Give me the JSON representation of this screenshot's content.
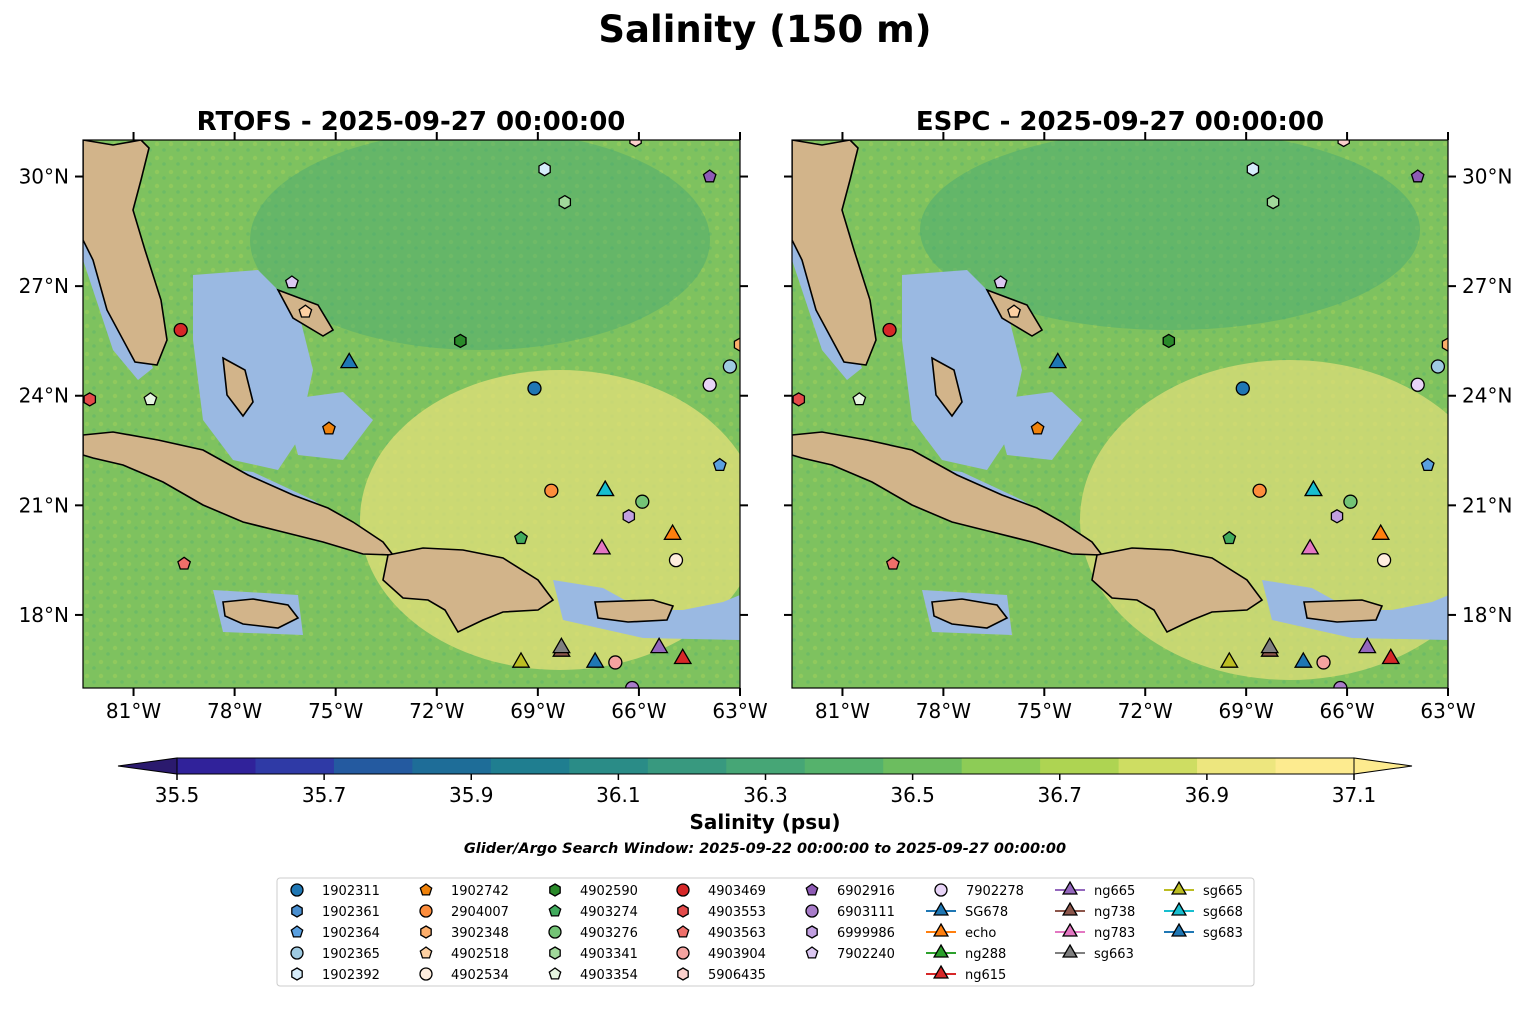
{
  "figure": {
    "title": "Salinity (150 m)",
    "search_window": "Glider/Argo Search Window: 2025-09-22 00:00:00 to 2025-09-27 00:00:00"
  },
  "chart_data": {
    "type": "map",
    "panels": [
      {
        "name": "rtofs",
        "title": "RTOFS - 2025-09-27 00:00:00"
      },
      {
        "name": "espc",
        "title": "ESPC - 2025-09-27 00:00:00"
      }
    ],
    "lon_range": [
      -82.5,
      -63
    ],
    "lat_range": [
      16,
      31
    ],
    "lon_ticks": [
      -81,
      -78,
      -75,
      -72,
      -69,
      -66,
      -63
    ],
    "lon_tick_labels": [
      "81°W",
      "78°W",
      "75°W",
      "72°W",
      "69°W",
      "66°W",
      "63°W"
    ],
    "lat_ticks": [
      18,
      21,
      24,
      27,
      30
    ],
    "lat_tick_labels": [
      "18°N",
      "21°N",
      "24°N",
      "27°N",
      "30°N"
    ],
    "colorbar": {
      "label": "Salinity (psu)",
      "min": 35.5,
      "max": 37.1,
      "ticks": [
        35.5,
        35.7,
        35.9,
        36.1,
        36.3,
        36.5,
        36.7,
        36.9,
        37.1
      ],
      "tick_labels": [
        "35.5",
        "35.7",
        "35.9",
        "36.1",
        "36.3",
        "36.5",
        "36.7",
        "36.9",
        "37.1"
      ],
      "colors": [
        "#2b1a6e",
        "#30229a",
        "#2f3aa6",
        "#245aa0",
        "#1e6d98",
        "#1f7e90",
        "#2a8c87",
        "#38997f",
        "#46a676",
        "#55b26c",
        "#6cbd5f",
        "#8dcc56",
        "#aed452",
        "#cedd62",
        "#ede67e",
        "#fdeb8f"
      ]
    },
    "colors": {
      "land": "#d2b48a",
      "shelf": "#9ab9e2",
      "ocean": "#7ec25f",
      "warm": "#e6e07a",
      "deep": "#48a974"
    },
    "observations": [
      {
        "label": "1902311",
        "marker": "circle",
        "color": "#1f77b4",
        "lon": -69.1,
        "lat": 24.2
      },
      {
        "label": "1902361",
        "marker": "hexagon",
        "color": "#4a8fd0",
        "lon": -63.3,
        "lat": 24.8
      },
      {
        "label": "1902364",
        "marker": "pentagon",
        "color": "#5aa0e0",
        "lon": -63.6,
        "lat": 22.1
      },
      {
        "label": "1902365",
        "marker": "circle",
        "color": "#9ecae1",
        "lon": -63.3,
        "lat": 24.8
      },
      {
        "label": "1902392",
        "marker": "hexagon",
        "color": "#d6ecfa",
        "lon": -68.8,
        "lat": 30.2
      },
      {
        "label": "1902742",
        "marker": "pentagon",
        "color": "#f0820a",
        "lon": -75.2,
        "lat": 23.1
      },
      {
        "label": "2904007",
        "marker": "circle",
        "color": "#fd8d3c",
        "lon": -68.6,
        "lat": 21.4
      },
      {
        "label": "3902348",
        "marker": "hexagon",
        "color": "#fdae6b",
        "lon": -63.0,
        "lat": 25.4
      },
      {
        "label": "4902518",
        "marker": "pentagon",
        "color": "#fdd0a2",
        "lon": -75.9,
        "lat": 26.3
      },
      {
        "label": "4902534",
        "marker": "circle",
        "color": "#feedde",
        "lon": -64.9,
        "lat": 19.5
      },
      {
        "label": "4902590",
        "marker": "hexagon",
        "color": "#2a8a2a",
        "lon": -71.3,
        "lat": 25.5
      },
      {
        "label": "4903274",
        "marker": "pentagon",
        "color": "#41ab5d",
        "lon": -69.5,
        "lat": 20.1
      },
      {
        "label": "4903276",
        "marker": "circle",
        "color": "#74c476",
        "lon": -65.9,
        "lat": 21.1
      },
      {
        "label": "4903341",
        "marker": "hexagon",
        "color": "#a1d99b",
        "lon": -68.2,
        "lat": 29.3
      },
      {
        "label": "4903354",
        "marker": "pentagon",
        "color": "#e5f5e0",
        "lon": -80.5,
        "lat": 23.9
      },
      {
        "label": "4903469",
        "marker": "circle",
        "color": "#d62728",
        "lon": -79.6,
        "lat": 25.8
      },
      {
        "label": "4903553",
        "marker": "hexagon",
        "color": "#e34a4a",
        "lon": -82.3,
        "lat": 23.9
      },
      {
        "label": "4903563",
        "marker": "pentagon",
        "color": "#ef6f6a",
        "lon": -79.5,
        "lat": 19.4
      },
      {
        "label": "4903904",
        "marker": "circle",
        "color": "#f4a3a0",
        "lon": -66.7,
        "lat": 16.7
      },
      {
        "label": "5906435",
        "marker": "hexagon",
        "color": "#fbd0cc",
        "lon": -66.1,
        "lat": 31.0
      },
      {
        "label": "6902916",
        "marker": "pentagon",
        "color": "#8e5bb5",
        "lon": -63.9,
        "lat": 30.0
      },
      {
        "label": "6903111",
        "marker": "circle",
        "color": "#a87cc9",
        "lon": -66.2,
        "lat": 16.0
      },
      {
        "label": "6999986",
        "marker": "hexagon",
        "color": "#c19fe0",
        "lon": -66.3,
        "lat": 20.7
      },
      {
        "label": "7902240",
        "marker": "pentagon",
        "color": "#dcc8f2",
        "lon": -76.3,
        "lat": 27.1
      },
      {
        "label": "7902278",
        "marker": "circle",
        "color": "#e8d4f7",
        "lon": -63.9,
        "lat": 24.3
      },
      {
        "label": "SG678",
        "marker": "triangle",
        "color": "#1f77b4",
        "lon": -74.6,
        "lat": 24.9
      },
      {
        "label": "echo",
        "marker": "triangle",
        "color": "#ff7f0e",
        "lon": -65.0,
        "lat": 20.2
      },
      {
        "label": "ng288",
        "marker": "triangle",
        "color": "#2ca02c",
        "lon": -67.0,
        "lat": 21.4
      },
      {
        "label": "ng615",
        "marker": "triangle",
        "color": "#d62728",
        "lon": -64.7,
        "lat": 16.8
      },
      {
        "label": "ng665",
        "marker": "triangle",
        "color": "#9467bd",
        "lon": -65.4,
        "lat": 17.1
      },
      {
        "label": "ng738",
        "marker": "triangle",
        "color": "#8c564b",
        "lon": -68.3,
        "lat": 17.0
      },
      {
        "label": "ng783",
        "marker": "triangle",
        "color": "#e377c2",
        "lon": -67.1,
        "lat": 19.8
      },
      {
        "label": "sg663",
        "marker": "triangle",
        "color": "#7f7f7f",
        "lon": -68.3,
        "lat": 17.1
      },
      {
        "label": "sg665",
        "marker": "triangle",
        "color": "#bcbd22",
        "lon": -69.5,
        "lat": 16.7
      },
      {
        "label": "sg668",
        "marker": "triangle",
        "color": "#17becf",
        "lon": -67.0,
        "lat": 21.4
      },
      {
        "label": "sg683",
        "marker": "triangle",
        "color": "#1f77b4",
        "lon": -67.3,
        "lat": 16.7
      }
    ]
  }
}
